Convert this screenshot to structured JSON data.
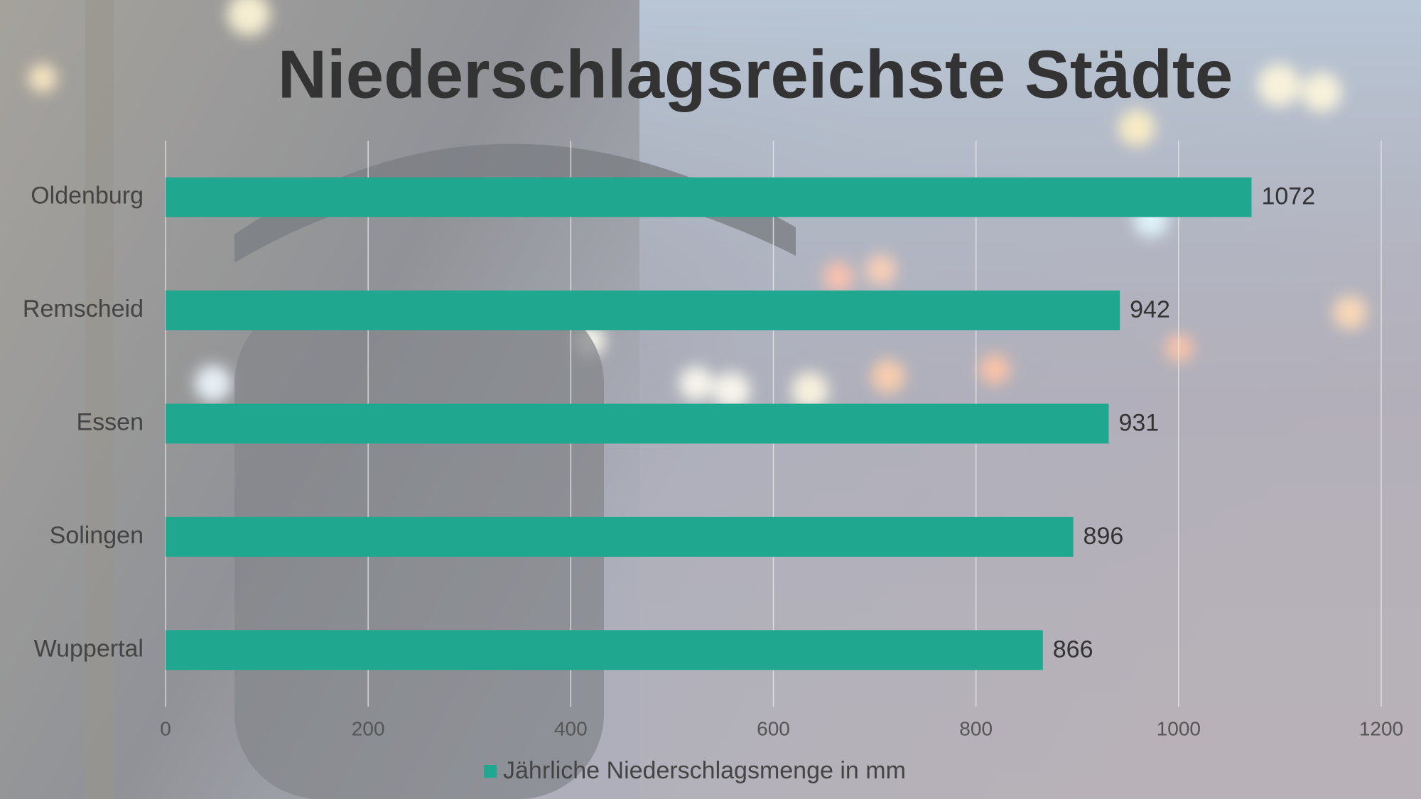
{
  "chart_data": {
    "type": "bar",
    "orientation": "horizontal",
    "title": "Niederschlagsreichste Städte",
    "categories": [
      "Oldenburg",
      "Remscheid",
      "Essen",
      "Solingen",
      "Wuppertal"
    ],
    "series": [
      {
        "name": "Jährliche Niederschlagsmenge in mm",
        "color": "#1fa88f",
        "values": [
          1072,
          942,
          931,
          896,
          866
        ]
      }
    ],
    "xlim": [
      0,
      1200
    ],
    "xticks": [
      0,
      200,
      400,
      600,
      800,
      1000,
      1200
    ],
    "grid": true,
    "legend": "bottom"
  }
}
